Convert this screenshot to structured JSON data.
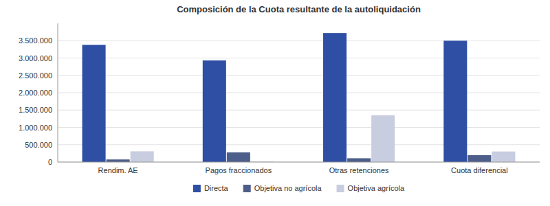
{
  "chart_data": {
    "type": "bar",
    "title": "Composición de la Cuota resultante de la autoliquidación",
    "categories": [
      "Rendim. AE",
      "Pagos fraccionados",
      "Otras retenciones",
      "Cuota diferencial"
    ],
    "series": [
      {
        "name": "Directa",
        "color": "#2E4FA3",
        "values": [
          3380000,
          2930000,
          3720000,
          3500000
        ]
      },
      {
        "name": "Objetiva no agrícola",
        "color": "#4D5E8A",
        "values": [
          75000,
          280000,
          110000,
          200000
        ]
      },
      {
        "name": "Objetiva agrícola",
        "color": "#C8CDE0",
        "values": [
          310000,
          15000,
          1350000,
          305000
        ]
      }
    ],
    "ylim": [
      0,
      4000000
    ],
    "yticks": [
      0,
      {
        "value": 500000,
        "label": "500.000"
      },
      {
        "value": 1000000,
        "label": "1.000.000"
      },
      {
        "value": 1500000,
        "label": "1.500.000"
      },
      {
        "value": 2000000,
        "label": "2.000.000"
      },
      {
        "value": 2500000,
        "label": "2.500.000"
      },
      {
        "value": 3000000,
        "label": "3.000.000"
      },
      {
        "value": 3500000,
        "label": "3.500.000"
      }
    ],
    "grid": true,
    "legend": "bottom"
  }
}
